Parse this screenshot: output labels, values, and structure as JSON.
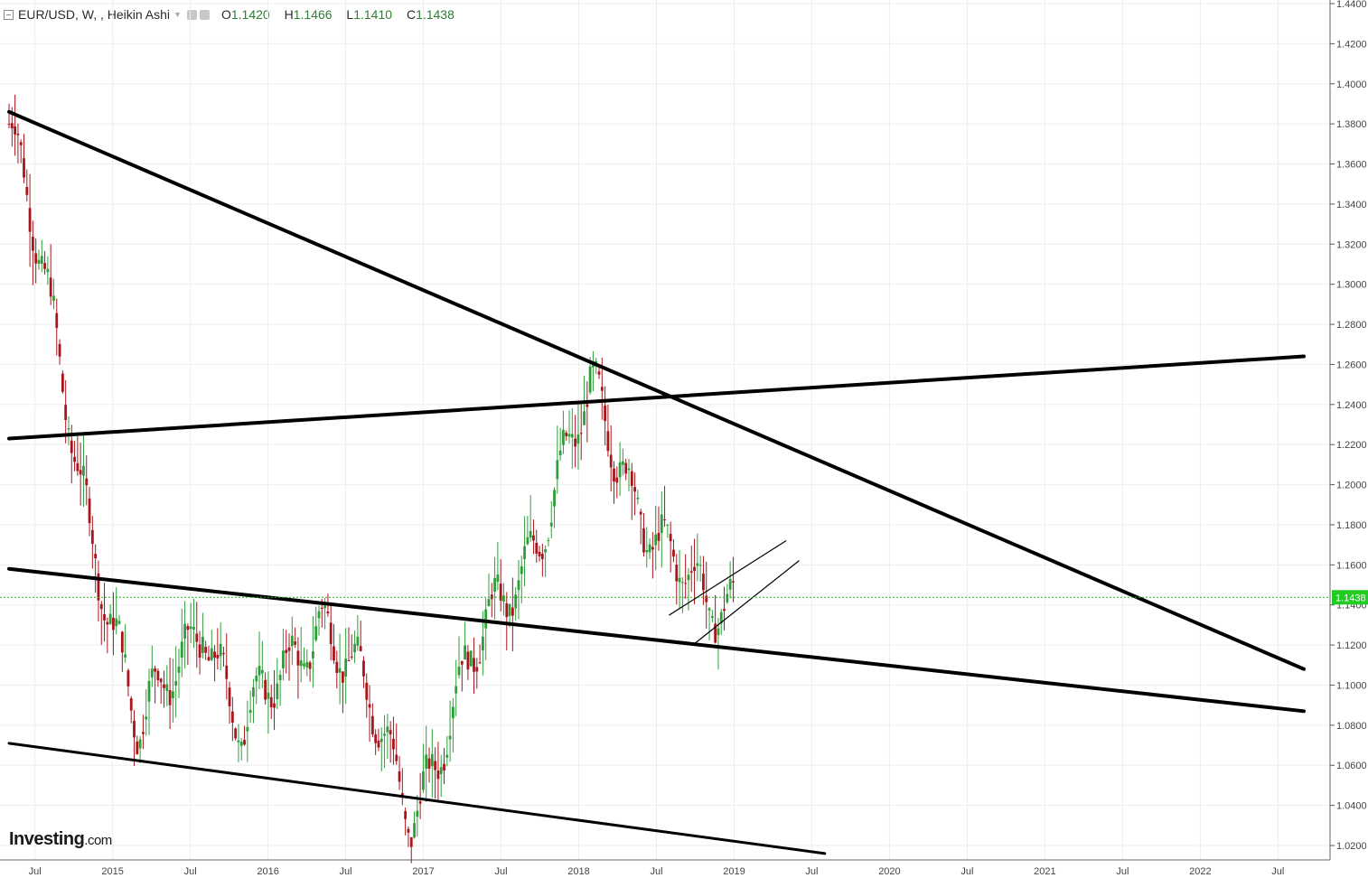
{
  "header": {
    "symbol_label": "EUR/USD, W, , Heikin Ashi",
    "open_key": "O",
    "open_val": "1.1420",
    "high_key": "H",
    "high_val": "1.1466",
    "low_key": "L",
    "low_val": "1.1410",
    "close_key": "C",
    "close_val": "1.1438"
  },
  "logo": {
    "main": "Investing",
    "suffix": ".com"
  },
  "colors": {
    "up": "#2e9e3a",
    "down": "#a8151b",
    "grid": "#eeeeee",
    "price_line": "#22aa22",
    "price_tag": "#22cc22"
  },
  "chart_data": {
    "type": "candlestick",
    "price_axis": {
      "ticks": [
        "1.4400",
        "1.4200",
        "1.4000",
        "1.3800",
        "1.3600",
        "1.3400",
        "1.3200",
        "1.3000",
        "1.2800",
        "1.2600",
        "1.2400",
        "1.2200",
        "1.2000",
        "1.1800",
        "1.1600",
        "1.1400",
        "1.1200",
        "1.1000",
        "1.0800",
        "1.0600",
        "1.0400",
        "1.0200"
      ],
      "ylim": [
        1.005,
        1.445
      ]
    },
    "time_axis": {
      "ticks": [
        "Jul",
        "2015",
        "Jul",
        "2016",
        "Jul",
        "2017",
        "Jul",
        "2018",
        "Jul",
        "2019",
        "Jul",
        "2020",
        "Jul",
        "2021",
        "Jul",
        "2022",
        "Jul"
      ],
      "range": [
        "2014-05",
        "2022-10"
      ]
    },
    "last_price": "1.1438",
    "key_points": [
      {
        "date": "2014-05",
        "value": 1.38
      },
      {
        "date": "2015-03",
        "value": 1.07
      },
      {
        "date": "2015-08",
        "value": 1.14
      },
      {
        "date": "2015-11",
        "value": 1.07
      },
      {
        "date": "2016-05",
        "value": 1.14
      },
      {
        "date": "2016-12",
        "value": 1.04
      },
      {
        "date": "2018-02",
        "value": 1.24
      },
      {
        "date": "2018-11",
        "value": 1.13
      },
      {
        "date": "2019-01",
        "value": 1.1438
      }
    ],
    "trendlines": [
      {
        "from": [
          "2014-05",
          1.386
        ],
        "to": [
          "2022-09",
          1.108
        ],
        "style": "thick"
      },
      {
        "from": [
          "2014-05",
          1.223
        ],
        "to": [
          "2022-09",
          1.264
        ],
        "style": "thick"
      },
      {
        "from": [
          "2014-05",
          1.158
        ],
        "to": [
          "2022-09",
          1.087
        ],
        "style": "thick"
      },
      {
        "from": [
          "2014-05",
          1.071
        ],
        "to": [
          "2019-08",
          1.016
        ],
        "style": "medium"
      },
      {
        "from": [
          "2018-08",
          1.135
        ],
        "to": [
          "2019-05",
          1.172
        ],
        "style": "thin"
      },
      {
        "from": [
          "2018-10",
          1.121
        ],
        "to": [
          "2019-06",
          1.162
        ],
        "style": "thin"
      }
    ]
  }
}
